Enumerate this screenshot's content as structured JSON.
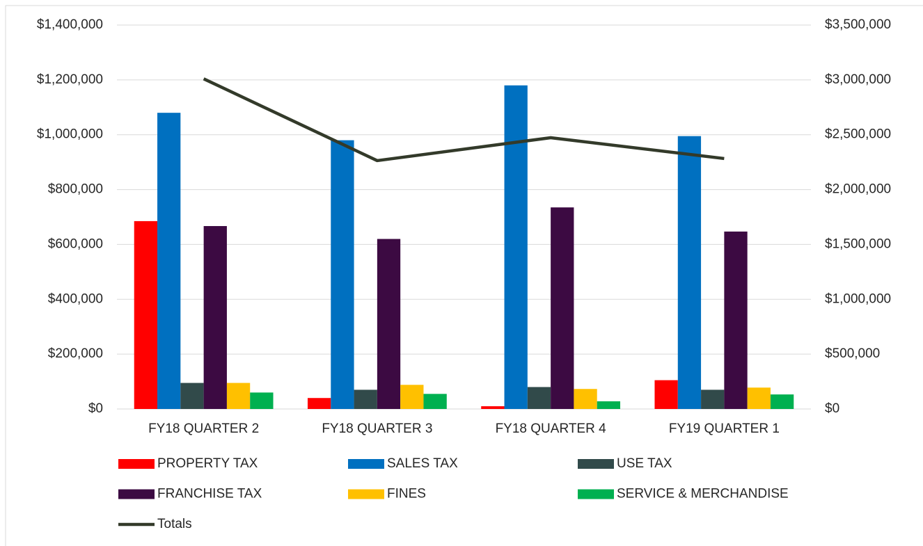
{
  "chart_data": {
    "type": "bar",
    "categories": [
      "FY18 QUARTER 2",
      "FY18 QUARTER 3",
      "FY18 QUARTER 4",
      "FY19 QUARTER 1"
    ],
    "series": [
      {
        "name": "PROPERTY TAX",
        "color": "#ff0000",
        "values": [
          685000,
          40000,
          10000,
          105000
        ]
      },
      {
        "name": "SALES TAX",
        "color": "#0070c0",
        "values": [
          1080000,
          980000,
          1180000,
          995000
        ]
      },
      {
        "name": "USE TAX",
        "color": "#314a4a",
        "values": [
          95000,
          70000,
          80000,
          70000
        ]
      },
      {
        "name": "FRANCHISE TAX",
        "color": "#3c0a42",
        "values": [
          667000,
          620000,
          735000,
          647000
        ]
      },
      {
        "name": "FINES",
        "color": "#ffc000",
        "values": [
          95000,
          88000,
          73000,
          78000
        ]
      },
      {
        "name": "SERVICE & MERCHANDISE",
        "color": "#00b050",
        "values": [
          60000,
          55000,
          28000,
          53000
        ]
      },
      {
        "name": "Totals",
        "color": "#333a2a",
        "type": "line",
        "axis": "y2",
        "values": [
          3010000,
          2264000,
          2473000,
          2283000
        ]
      }
    ],
    "ylim": [
      0,
      1400000
    ],
    "yticks": [
      {
        "value": 0,
        "label": "$0"
      },
      {
        "value": 200000,
        "label": "$200,000"
      },
      {
        "value": 400000,
        "label": "$400,000"
      },
      {
        "value": 600000,
        "label": "$600,000"
      },
      {
        "value": 800000,
        "label": "$800,000"
      },
      {
        "value": 1000000,
        "label": "$1,000,000"
      },
      {
        "value": 1200000,
        "label": "$1,200,000"
      },
      {
        "value": 1400000,
        "label": "$1,400,000"
      }
    ],
    "y2lim": [
      0,
      3500000
    ],
    "y2ticks": [
      {
        "value": 0,
        "label": "$0"
      },
      {
        "value": 500000,
        "label": "$500,000"
      },
      {
        "value": 1000000,
        "label": "$1,000,000"
      },
      {
        "value": 1500000,
        "label": "$1,500,000"
      },
      {
        "value": 2000000,
        "label": "$2,000,000"
      },
      {
        "value": 2500000,
        "label": "$2,500,000"
      },
      {
        "value": 3000000,
        "label": "$3,000,000"
      },
      {
        "value": 3500000,
        "label": "$3,500,000"
      }
    ],
    "grid": true,
    "legend": "bottom"
  }
}
